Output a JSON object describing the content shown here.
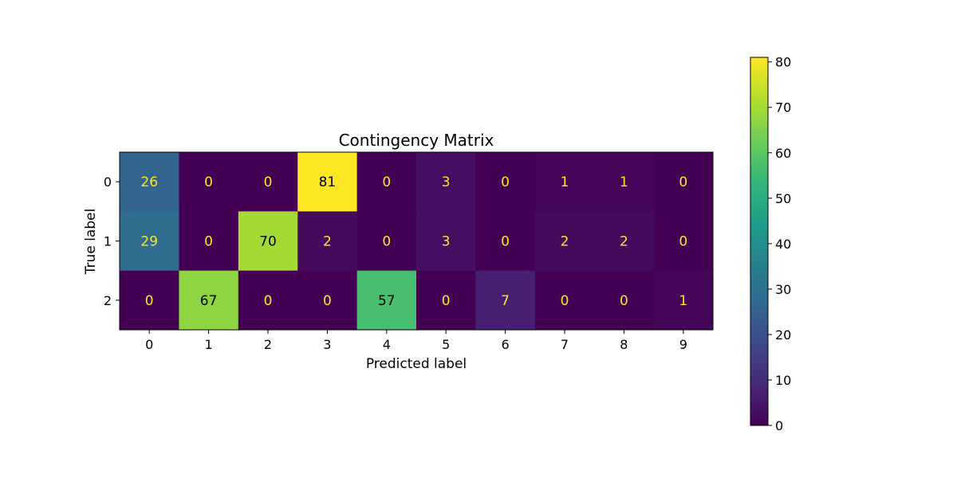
{
  "chart_data": {
    "type": "heatmap",
    "title": "Contingency Matrix",
    "xlabel": "Predicted label",
    "ylabel": "True label",
    "x_categories": [
      "0",
      "1",
      "2",
      "3",
      "4",
      "5",
      "6",
      "7",
      "8",
      "9"
    ],
    "y_categories": [
      "0",
      "1",
      "2"
    ],
    "values": [
      [
        26,
        0,
        0,
        81,
        0,
        3,
        0,
        1,
        1,
        0
      ],
      [
        29,
        0,
        70,
        2,
        0,
        3,
        0,
        2,
        2,
        0
      ],
      [
        0,
        67,
        0,
        0,
        57,
        0,
        7,
        0,
        0,
        1
      ]
    ],
    "colormap": "viridis",
    "color_range": [
      0,
      81
    ],
    "colorbar": {
      "ticks": [
        "0",
        "10",
        "20",
        "30",
        "40",
        "50",
        "60",
        "70",
        "80"
      ],
      "tick_values": [
        0,
        10,
        20,
        30,
        40,
        50,
        60,
        70,
        80
      ]
    },
    "colors": {
      "label_on_dark": "#fde725",
      "label_on_light": "#000000"
    }
  }
}
